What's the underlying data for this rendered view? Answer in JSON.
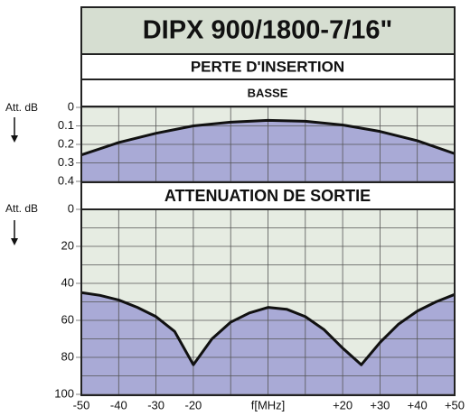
{
  "header": {
    "title": "DIPX 900/1800-7/16\""
  },
  "chart_data": [
    {
      "type": "area",
      "title": "PERTE D'INSERTION",
      "subtitle": "BASSE",
      "ylabel": "Att. dB",
      "x": [
        -50,
        -40,
        -30,
        -20,
        -10,
        0,
        10,
        20,
        30,
        40,
        50
      ],
      "values": [
        0.257,
        0.19,
        0.14,
        0.1,
        0.08,
        0.07,
        0.075,
        0.095,
        0.13,
        0.18,
        0.25
      ],
      "xlim": [
        -50,
        50
      ],
      "ylim": [
        0,
        0.4
      ],
      "yticks": [
        0,
        0.1,
        0.2,
        0.3,
        0.4
      ],
      "yinverted": true,
      "color": "#a9aad6",
      "grid": true
    },
    {
      "type": "area",
      "title": "ATTENUATION DE SORTIE",
      "ylabel": "Att. dB",
      "xlabel": "f[MHz]",
      "x": [
        -50,
        -45,
        -40,
        -35,
        -30,
        -25,
        -20,
        -15,
        -10,
        -5,
        0,
        5,
        10,
        15,
        20,
        25,
        30,
        35,
        40,
        45,
        50
      ],
      "values": [
        45,
        46.5,
        49,
        53,
        58,
        66,
        84,
        70,
        61,
        56,
        53,
        54,
        58,
        65,
        75,
        84,
        72,
        62,
        55,
        50,
        46
      ],
      "xlim": [
        -50,
        50
      ],
      "xticks": [
        -50,
        -40,
        -30,
        -20,
        {
          "value": 20,
          "label": "+20"
        },
        {
          "value": 30,
          "label": "+30"
        },
        {
          "value": 40,
          "label": "+40"
        },
        {
          "value": 50,
          "label": "+50"
        }
      ],
      "xminor": [
        -10,
        0,
        10
      ],
      "ylim": [
        0,
        100
      ],
      "yticks": [
        0,
        20,
        40,
        60,
        80,
        100
      ],
      "yminor": [
        10,
        30,
        50,
        70,
        90
      ],
      "yinverted": true,
      "color": "#a9aad6",
      "grid": true
    }
  ]
}
